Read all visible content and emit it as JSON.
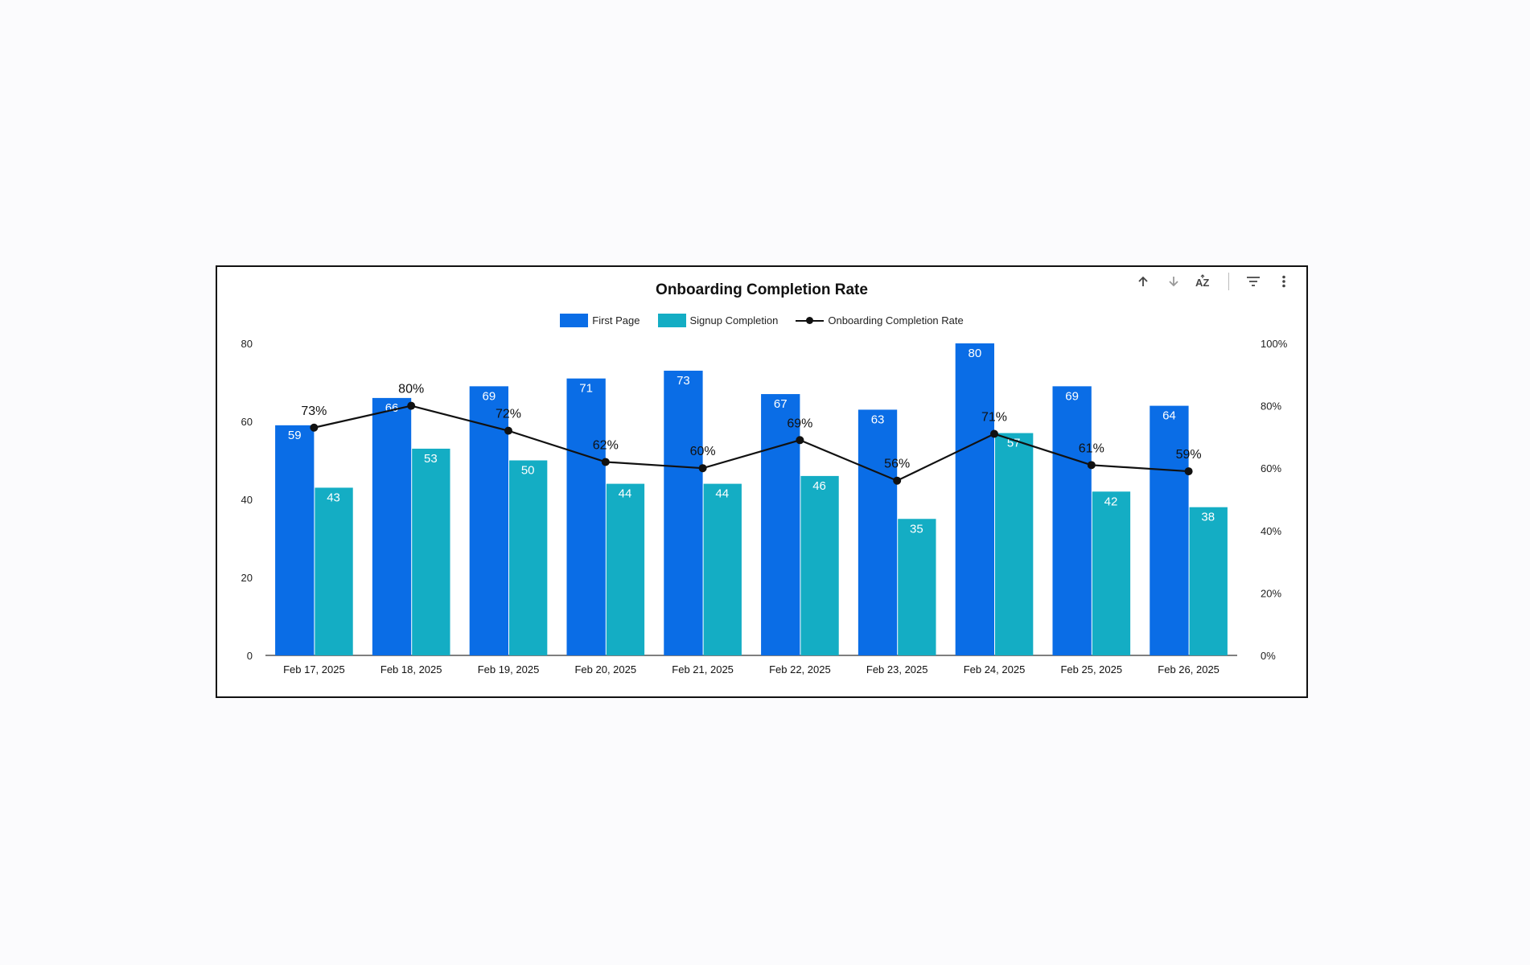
{
  "chart_data": {
    "type": "bar",
    "title": "Onboarding Completion Rate",
    "categories": [
      "Feb 17, 2025",
      "Feb 18, 2025",
      "Feb 19, 2025",
      "Feb 20, 2025",
      "Feb 21, 2025",
      "Feb 22, 2025",
      "Feb 23, 2025",
      "Feb 24, 2025",
      "Feb 25, 2025",
      "Feb 26, 2025"
    ],
    "series": [
      {
        "name": "First Page",
        "kind": "bar",
        "axis": "left",
        "color": "#0a6de6",
        "values": [
          59,
          66,
          69,
          71,
          73,
          67,
          63,
          80,
          69,
          64
        ]
      },
      {
        "name": "Signup Completion",
        "kind": "bar",
        "axis": "left",
        "color": "#14adc4",
        "values": [
          43,
          53,
          50,
          44,
          44,
          46,
          35,
          57,
          42,
          38
        ]
      },
      {
        "name": "Onboarding Completion Rate",
        "kind": "line",
        "axis": "right",
        "color": "#111111",
        "values": [
          73,
          80,
          72,
          62,
          60,
          69,
          56,
          71,
          61,
          59
        ],
        "labels": [
          "73%",
          "80%",
          "72%",
          "62%",
          "60%",
          "69%",
          "56%",
          "71%",
          "61%",
          "59%"
        ]
      }
    ],
    "ylim": [
      0,
      80
    ],
    "yticks": [
      "0",
      "20",
      "40",
      "60",
      "80"
    ],
    "y2lim": [
      0,
      100
    ],
    "y2ticks": [
      "0%",
      "20%",
      "40%",
      "60%",
      "80%",
      "100%"
    ],
    "legend_position": "top-center",
    "grid": false
  },
  "toolbar": {
    "sort_asc_icon": "arrow-up-icon",
    "sort_desc_icon": "arrow-down-icon",
    "sort_az_icon": "sort-az-icon",
    "filter_icon": "filter-icon",
    "more_icon": "more-vert-icon"
  }
}
